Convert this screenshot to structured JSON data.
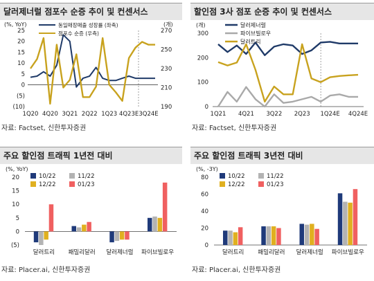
{
  "panels": [
    {
      "title": "달러제너럴 점포수 순증 추이 및 컨센서스",
      "source": "자료: Factset, 신한투자증권",
      "chart_data": {
        "type": "line",
        "left_unit": "(%, YoY)",
        "right_unit": "(개)",
        "x_tick_labels": [
          "1Q20",
          "4Q20",
          "3Q21",
          "2Q22",
          "1Q23",
          "4Q23E",
          "3Q24E"
        ],
        "x_tick_index": [
          0,
          3,
          6,
          9,
          12,
          15,
          18
        ],
        "ylim_left": [
          -10,
          25
        ],
        "yticks_left": [
          -10,
          -5,
          0,
          5,
          10,
          15,
          20,
          25
        ],
        "ytick_labels_left": [
          "(10)",
          "(5)",
          "0",
          "5",
          "10",
          "15",
          "20",
          "25"
        ],
        "ylim_right": [
          190,
          270
        ],
        "yticks_right": [
          190,
          210,
          230,
          250,
          270
        ],
        "series": [
          {
            "name": "동일매장매출 성장률 (좌축)",
            "color": "#1f3a68",
            "axis": "left",
            "values": [
              3.5,
              4,
              6,
              4,
              9,
              23,
              20,
              -1,
              3,
              4,
              8,
              3,
              2,
              2,
              3,
              4,
              3,
              3,
              3,
              3
            ]
          },
          {
            "name": "점포수 순증 (우측)",
            "color": "#c8a21e",
            "axis": "right",
            "values": [
              230,
              240,
              262,
              193,
              255,
              210,
              218,
              245,
              200,
              200,
              211,
              262,
              213,
              205,
              196,
              241,
              252,
              258,
              255,
              255
            ]
          }
        ]
      }
    },
    {
      "title": "할인점 3사 점포 순증 추이 및 컨센서스",
      "source": "자료: Factset, 신한투자증권",
      "chart_data": {
        "type": "line",
        "left_unit": "(개)",
        "x_tick_labels": [
          "1Q21",
          "4Q21",
          "3Q22",
          "2Q23",
          "1Q24E",
          "4Q24E"
        ],
        "x_tick_index": [
          0,
          3,
          6,
          9,
          12,
          15
        ],
        "ylim": [
          0,
          300
        ],
        "yticks": [
          0,
          100,
          200,
          300
        ],
        "series": [
          {
            "name": "달러제너럴",
            "color": "#1f3a68",
            "values": [
              255,
              223,
              250,
              215,
              262,
              210,
              245,
              255,
              250,
              215,
              230,
              262,
              265,
              258,
              258,
              258
            ]
          },
          {
            "name": "파이브빌로우",
            "color": "#a9a9a9",
            "values": [
              0,
              60,
              20,
              80,
              30,
              0,
              50,
              15,
              20,
              30,
              40,
              20,
              45,
              50,
              40,
              40
            ]
          },
          {
            "name": "달러트리",
            "color": "#c8a21e",
            "values": [
              182,
              168,
              180,
              255,
              150,
              20,
              82,
              50,
              50,
              255,
              115,
              100,
              120,
              125,
              128,
              130
            ]
          }
        ]
      }
    },
    {
      "title": "주요 할인점 트래픽 1년전 대비",
      "source": "자료: Placer.ai, 신한투자증권",
      "chart_data": {
        "type": "bar",
        "y_unit": "(%, YoY)",
        "categories": [
          "달러트리",
          "패밀리달러",
          "달러제너럴",
          "파이브빌로우"
        ],
        "ylim": [
          -5,
          20
        ],
        "yticks": [
          -5,
          0,
          5,
          10,
          15,
          20
        ],
        "ytick_labels": [
          "(5)",
          "0",
          "5",
          "10",
          "15",
          "20"
        ],
        "series": [
          {
            "name": "10/22",
            "color": "#1f3a7a",
            "values": [
              -4,
              2,
              -4,
              5
            ]
          },
          {
            "name": "11/22",
            "color": "#b3b3b3",
            "values": [
              -5,
              1.5,
              -3.5,
              5.5
            ]
          },
          {
            "name": "12/22",
            "color": "#e0b020",
            "values": [
              -3,
              2.5,
              -3,
              5
            ]
          },
          {
            "name": "01/23",
            "color": "#f06060",
            "values": [
              10,
              3.5,
              -3,
              18
            ]
          }
        ]
      }
    },
    {
      "title": "주요 할인점 트래픽 3년전 대비",
      "source": "자료: Placer.ai, 신한투자증권",
      "chart_data": {
        "type": "bar",
        "y_unit": "(%, -3Y)",
        "categories": [
          "달러트리",
          "패밀리달러",
          "달러제너럴",
          "파이브빌로우"
        ],
        "ylim": [
          0,
          80
        ],
        "yticks": [
          0,
          20,
          40,
          60,
          80
        ],
        "series": [
          {
            "name": "10/22",
            "color": "#1f3a7a",
            "values": [
              17,
              22,
              25,
              61
            ]
          },
          {
            "name": "11/22",
            "color": "#b3b3b3",
            "values": [
              17,
              22,
              24,
              51
            ]
          },
          {
            "name": "12/22",
            "color": "#e0b020",
            "values": [
              15,
              22,
              25,
              50
            ]
          },
          {
            "name": "01/23",
            "color": "#f06060",
            "values": [
              21,
              20,
              19,
              66
            ]
          }
        ]
      }
    }
  ]
}
